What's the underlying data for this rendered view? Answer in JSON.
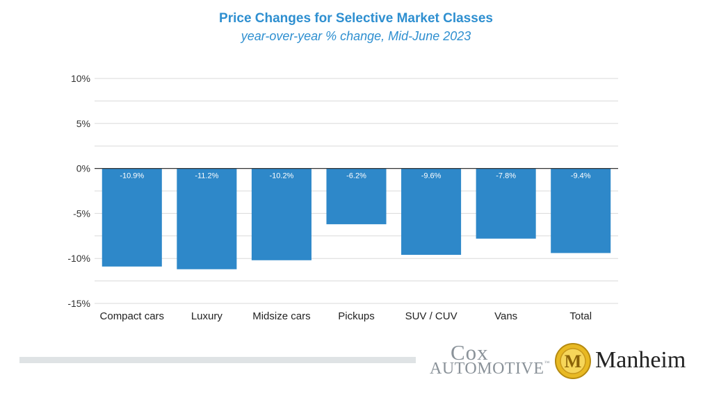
{
  "chart_data": {
    "type": "bar",
    "title": "Price Changes for Selective Market Classes",
    "subtitle": "year-over-year % change, Mid-June 2023",
    "categories": [
      "Compact cars",
      "Luxury",
      "Midsize cars",
      "Pickups",
      "SUV / CUV",
      "Vans",
      "Total"
    ],
    "values": [
      -10.9,
      -11.2,
      -10.2,
      -6.2,
      -9.6,
      -7.8,
      -9.4
    ],
    "data_labels": [
      "-10.9%",
      "-11.2%",
      "-10.2%",
      "-6.2%",
      "-9.6%",
      "-7.8%",
      "-9.4%"
    ],
    "ylim": [
      -15,
      10
    ],
    "yticks": [
      10,
      5,
      0,
      -5,
      -10,
      -15
    ],
    "ytick_labels": [
      "10%",
      "5%",
      "0%",
      "-5%",
      "-10%",
      "-15%"
    ],
    "xlabel": "",
    "ylabel": "",
    "grid": true,
    "bar_color": "#2e88c9",
    "title_color": "#2e8fd0"
  },
  "logos": {
    "cox_top": "Cox",
    "cox_bottom": "AUTOMOTIVE",
    "cox_tm": "™",
    "manheim_letter": "M",
    "manheim_name": "Manheim"
  }
}
